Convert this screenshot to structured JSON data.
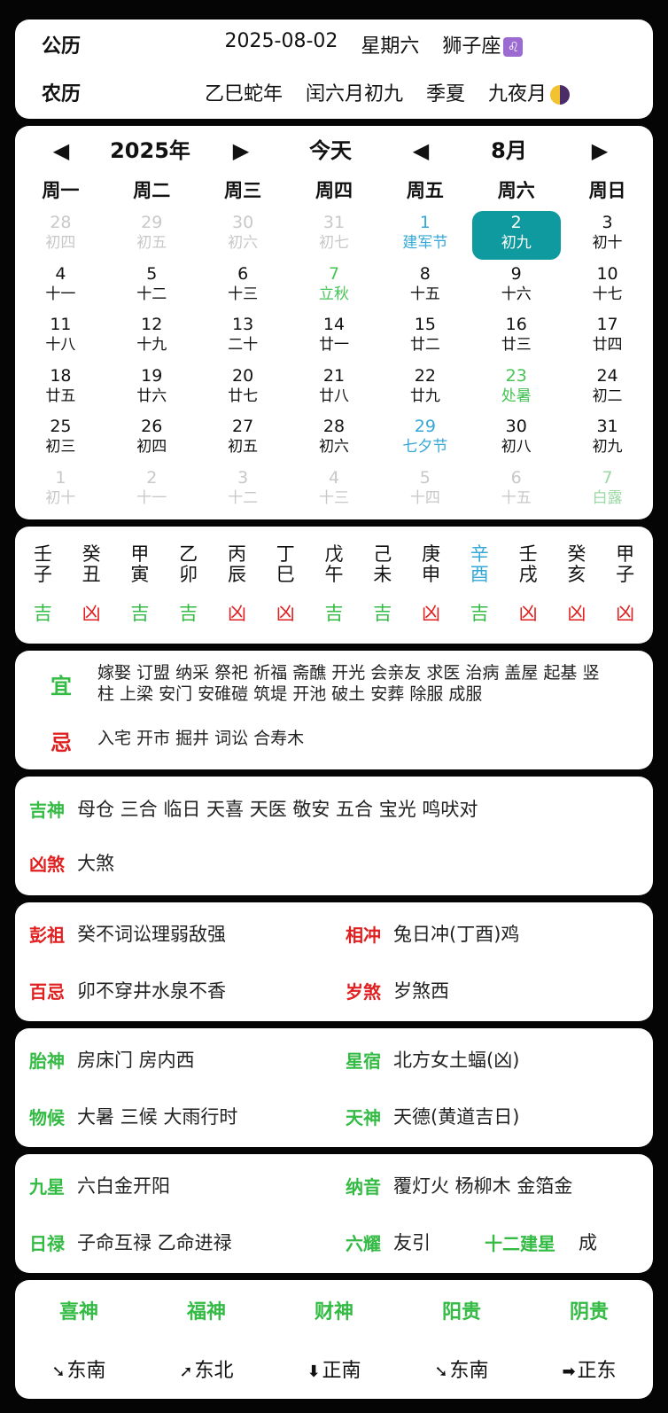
{
  "header": {
    "solar_label": "公历",
    "solar_date": "2025-08-02",
    "weekday": "星期六",
    "zodiac": "狮子座",
    "zodiac_symbol": "♌",
    "lunar_label": "农历",
    "lunar_year": "乙巳蛇年",
    "lunar_date": "闰六月初九",
    "season": "季夏",
    "moon_phase": "九夜月"
  },
  "calendar": {
    "prev_year": "◀",
    "year": "2025年",
    "next_year": "▶",
    "today": "今天",
    "prev_month": "◀",
    "month": "8月",
    "next_month": "▶",
    "weekdays": [
      "周一",
      "周二",
      "周三",
      "周四",
      "周五",
      "周六",
      "周日"
    ],
    "days": [
      {
        "d": "28",
        "l": "初四",
        "t": "other"
      },
      {
        "d": "29",
        "l": "初五",
        "t": "other"
      },
      {
        "d": "30",
        "l": "初六",
        "t": "other"
      },
      {
        "d": "31",
        "l": "初七",
        "t": "other"
      },
      {
        "d": "1",
        "l": "建军节",
        "t": "festival"
      },
      {
        "d": "2",
        "l": "初九",
        "t": "selected"
      },
      {
        "d": "3",
        "l": "初十",
        "t": ""
      },
      {
        "d": "4",
        "l": "十一",
        "t": ""
      },
      {
        "d": "5",
        "l": "十二",
        "t": ""
      },
      {
        "d": "6",
        "l": "十三",
        "t": ""
      },
      {
        "d": "7",
        "l": "立秋",
        "t": "term"
      },
      {
        "d": "8",
        "l": "十五",
        "t": ""
      },
      {
        "d": "9",
        "l": "十六",
        "t": ""
      },
      {
        "d": "10",
        "l": "十七",
        "t": ""
      },
      {
        "d": "11",
        "l": "十八",
        "t": ""
      },
      {
        "d": "12",
        "l": "十九",
        "t": ""
      },
      {
        "d": "13",
        "l": "二十",
        "t": ""
      },
      {
        "d": "14",
        "l": "廿一",
        "t": ""
      },
      {
        "d": "15",
        "l": "廿二",
        "t": ""
      },
      {
        "d": "16",
        "l": "廿三",
        "t": ""
      },
      {
        "d": "17",
        "l": "廿四",
        "t": ""
      },
      {
        "d": "18",
        "l": "廿五",
        "t": ""
      },
      {
        "d": "19",
        "l": "廿六",
        "t": ""
      },
      {
        "d": "20",
        "l": "廿七",
        "t": ""
      },
      {
        "d": "21",
        "l": "廿八",
        "t": ""
      },
      {
        "d": "22",
        "l": "廿九",
        "t": ""
      },
      {
        "d": "23",
        "l": "处暑",
        "t": "term"
      },
      {
        "d": "24",
        "l": "初二",
        "t": ""
      },
      {
        "d": "25",
        "l": "初三",
        "t": ""
      },
      {
        "d": "26",
        "l": "初四",
        "t": ""
      },
      {
        "d": "27",
        "l": "初五",
        "t": ""
      },
      {
        "d": "28",
        "l": "初六",
        "t": ""
      },
      {
        "d": "29",
        "l": "七夕节",
        "t": "festival"
      },
      {
        "d": "30",
        "l": "初八",
        "t": ""
      },
      {
        "d": "31",
        "l": "初九",
        "t": ""
      },
      {
        "d": "1",
        "l": "初十",
        "t": "other"
      },
      {
        "d": "2",
        "l": "十一",
        "t": "other"
      },
      {
        "d": "3",
        "l": "十二",
        "t": "other"
      },
      {
        "d": "4",
        "l": "十三",
        "t": "other"
      },
      {
        "d": "5",
        "l": "十四",
        "t": "other"
      },
      {
        "d": "6",
        "l": "十五",
        "t": "other"
      },
      {
        "d": "7",
        "l": "白露",
        "t": "other term"
      }
    ]
  },
  "ganzhi": {
    "stems": [
      "壬",
      "癸",
      "甲",
      "乙",
      "丙",
      "丁",
      "戊",
      "己",
      "庚",
      "辛",
      "壬",
      "癸",
      "甲"
    ],
    "branches": [
      "子",
      "丑",
      "寅",
      "卯",
      "辰",
      "巳",
      "午",
      "未",
      "申",
      "酉",
      "戌",
      "亥",
      "子"
    ],
    "today_index": 9,
    "luck": [
      "吉",
      "凶",
      "吉",
      "吉",
      "凶",
      "凶",
      "吉",
      "吉",
      "凶",
      "吉",
      "凶",
      "凶",
      "凶"
    ]
  },
  "yiji": {
    "yi_label": "宜",
    "yi_line1": "嫁娶 订盟 纳采 祭祀 祈福 斋醮 开光 会亲友 求医 治病 盖屋 起基 竖",
    "yi_line2": "柱 上梁 安门 安碓磑 筑堤 开池 破土 安葬 除服 成服",
    "ji_label": "忌",
    "ji_text": "入宅 开市 掘井 词讼 合寿木"
  },
  "shensha": {
    "ji_label": "吉神",
    "ji_text": "母仓 三合 临日 天喜 天医 敬安 五合 宝光 鸣吠对",
    "xiong_label": "凶煞",
    "xiong_text": "大煞"
  },
  "pengzu": {
    "pz_label": "彭祖",
    "pz_text": "癸不词讼理弱敌强",
    "xc_label": "相冲",
    "xc_text": "兔日冲(丁酉)鸡",
    "bj_label": "百忌",
    "bj_text": "卯不穿井水泉不香",
    "ss_label": "岁煞",
    "ss_text": "岁煞西"
  },
  "taishen": {
    "ts_label": "胎神",
    "ts_text": "房床门 房内西",
    "xx_label": "星宿",
    "xx_text": "北方女土蝠(凶)",
    "wh_label": "物候",
    "wh_text": "大暑 三候 大雨行时",
    "tsh_label": "天神",
    "tsh_text": "天德(黄道吉日)"
  },
  "jiuxing": {
    "jx_label": "九星",
    "jx_text": "六白金开阳",
    "ny_label": "纳音",
    "ny_text": "覆灯火 杨柳木 金箔金",
    "rl_label": "日禄",
    "rl_text": "子命互禄 乙命进禄",
    "ly_label": "六耀",
    "ly_text": "友引",
    "je_label": "十二建星",
    "je_text": "成"
  },
  "directions": {
    "heads": [
      "喜神",
      "福神",
      "财神",
      "阳贵",
      "阴贵"
    ],
    "arrows": [
      "➘",
      "➚",
      "⬇",
      "➘",
      "➡"
    ],
    "values": [
      "东南",
      "东北",
      "正南",
      "东南",
      "正东"
    ]
  },
  "colors": {
    "accent_teal": "#0f9aa0",
    "good_green": "#33bb44",
    "bad_red": "#e02020",
    "festival_blue": "#35a8d8"
  }
}
